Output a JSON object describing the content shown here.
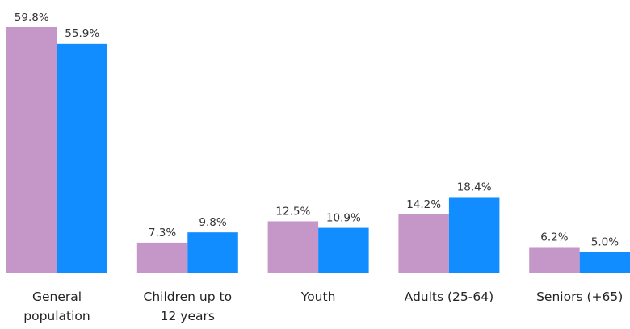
{
  "chart_data": {
    "type": "bar",
    "categories": [
      "General population",
      "Children up to 12 years",
      "Youth",
      "Adults (25-64)",
      "Seniors (+65)"
    ],
    "series": [
      {
        "color": "#c497c8",
        "values": [
          59.8,
          7.3,
          12.5,
          14.2,
          6.2
        ],
        "value_labels": [
          "59.8%",
          "7.3%",
          "12.5%",
          "14.2%",
          "6.2%"
        ]
      },
      {
        "color": "#118dff",
        "values": [
          55.9,
          9.8,
          10.9,
          18.4,
          5.0
        ],
        "value_labels": [
          "55.9%",
          "9.8%",
          "10.9%",
          "18.4%",
          "5.0%"
        ]
      }
    ]
  }
}
